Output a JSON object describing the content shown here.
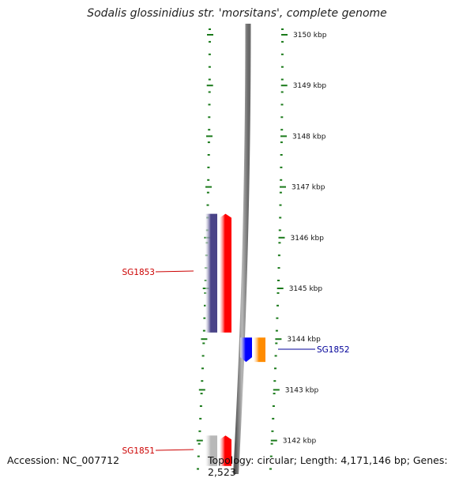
{
  "title": "Sodalis glossinidius str. 'morsitans', complete genome",
  "footer": {
    "accession": "Accession: NC_007712",
    "summary": "Topology: circular; Length: 4,171,146 bp; Genes: 2,523"
  },
  "axis": {
    "unit": "kbp",
    "ticks": [
      {
        "kbp": 3150,
        "label": "3150 kbp"
      },
      {
        "kbp": 3149,
        "label": "3149 kbp"
      },
      {
        "kbp": 3148,
        "label": "3148 kbp"
      },
      {
        "kbp": 3147,
        "label": "3147 kbp"
      },
      {
        "kbp": 3146,
        "label": "3146 kbp"
      },
      {
        "kbp": 3145,
        "label": "3145 kbp"
      },
      {
        "kbp": 3144,
        "label": "3144 kbp"
      },
      {
        "kbp": 3143,
        "label": "3143 kbp"
      },
      {
        "kbp": 3142,
        "label": "3142 kbp"
      }
    ]
  },
  "features": [
    {
      "name": "SG1853",
      "kind": "gene",
      "start_kbp": 3144.13,
      "end_kbp": 3146.47,
      "strand": "forward",
      "color": "#4a4488",
      "labeled": true,
      "label_color": "#cc0000"
    },
    {
      "name": "",
      "kind": "cds",
      "start_kbp": 3144.13,
      "end_kbp": 3146.47,
      "strand": "forward",
      "color": "#ff0000",
      "labeled": false
    },
    {
      "name": "SG1852",
      "kind": "gene",
      "start_kbp": 3143.55,
      "end_kbp": 3144.03,
      "strand": "reverse",
      "color": "#0000ff",
      "labeled": true,
      "label_color": "#000099"
    },
    {
      "name": "",
      "kind": "cds",
      "start_kbp": 3143.55,
      "end_kbp": 3144.03,
      "strand": "reverse",
      "color": "#ff8c00",
      "labeled": false
    },
    {
      "name": "SG1851",
      "kind": "gene",
      "start_kbp": 3141.5,
      "end_kbp": 3142.1,
      "strand": "forward",
      "color": "#b8b8b8",
      "labeled": true,
      "label_color": "#cc0000"
    },
    {
      "name": "",
      "kind": "cds",
      "start_kbp": 3141.5,
      "end_kbp": 3142.1,
      "strand": "forward",
      "color": "#ff0000",
      "labeled": false
    }
  ],
  "colors": {
    "backbone": "#8a8a8a",
    "ticks": "#1a7a1a",
    "tick_label": "#111111"
  }
}
